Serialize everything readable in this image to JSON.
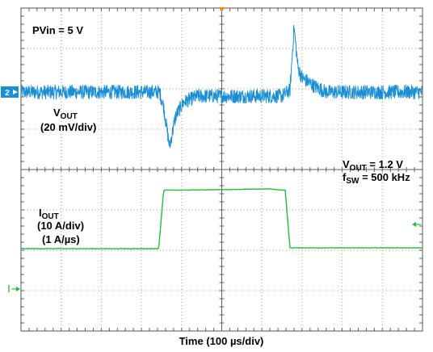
{
  "chart_data": {
    "type": "line",
    "title": "",
    "xlabel": "Time (100 µs/div)",
    "ylabel": "",
    "grid": true,
    "x_divisions": 10,
    "y_divisions": 8,
    "x_unit_per_div": "100 µs",
    "annotations": {
      "pvin": "PVin = 5 V",
      "vout_cond_main": "V",
      "vout_cond_sub": "OUT",
      "vout_cond_value": " = 1.2 V",
      "fsw_main": "f",
      "fsw_sub": "SW",
      "fsw_value": " = 500 kHz"
    },
    "series": [
      {
        "name": "VOUT",
        "label_main": "V",
        "label_sub": "OUT",
        "label_scale": "(20 mV/div)",
        "channel_marker": "2",
        "color": "#1a8fd6",
        "noise_pp_div": 0.25,
        "x_div": [
          0,
          3.45,
          3.55,
          3.7,
          3.85,
          4.05,
          4.4,
          6.5,
          6.7,
          6.8,
          6.9,
          7.0,
          7.3,
          7.6,
          10
        ],
        "y_div": [
          0,
          0,
          -0.35,
          -1.35,
          -0.6,
          -0.25,
          -0.1,
          -0.1,
          0.05,
          1.6,
          0.6,
          0.35,
          0.15,
          0,
          0
        ]
      },
      {
        "name": "IOUT",
        "label_main": "I",
        "label_sub": "OUT",
        "label_scale": "(10 A/div)",
        "label_slew": "(1 A/µs)",
        "color": "#22c03a",
        "x_div": [
          0,
          3.43,
          3.55,
          3.58,
          4.0,
          6.2,
          6.5,
          6.58,
          6.7,
          10
        ],
        "y_div": [
          0,
          0,
          1.42,
          1.45,
          1.45,
          1.48,
          1.45,
          1.45,
          0.02,
          0.02
        ]
      }
    ]
  }
}
